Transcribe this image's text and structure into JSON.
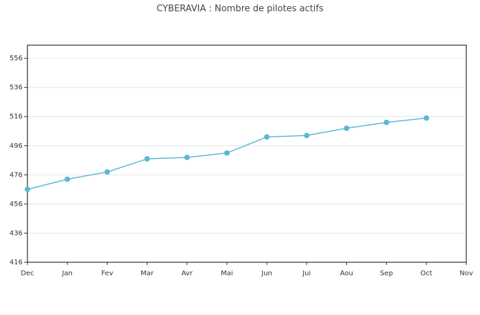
{
  "chart_data": {
    "type": "line",
    "title": "CYBERAVIA : Nombre de pilotes actifs",
    "categories": [
      "Dec",
      "Jan",
      "Fev",
      "Mar",
      "Avr",
      "Mai",
      "Jun",
      "Jui",
      "Aou",
      "Sep",
      "Oct",
      "Nov"
    ],
    "series": [
      {
        "color": "#5bb8d4",
        "values": [
          466,
          473,
          478,
          487,
          488,
          491,
          502,
          503,
          508,
          512,
          515,
          null
        ]
      }
    ],
    "ylim": [
      416,
      565
    ],
    "yticks": [
      416,
      436,
      456,
      476,
      496,
      516,
      536,
      556
    ],
    "grid": true
  }
}
